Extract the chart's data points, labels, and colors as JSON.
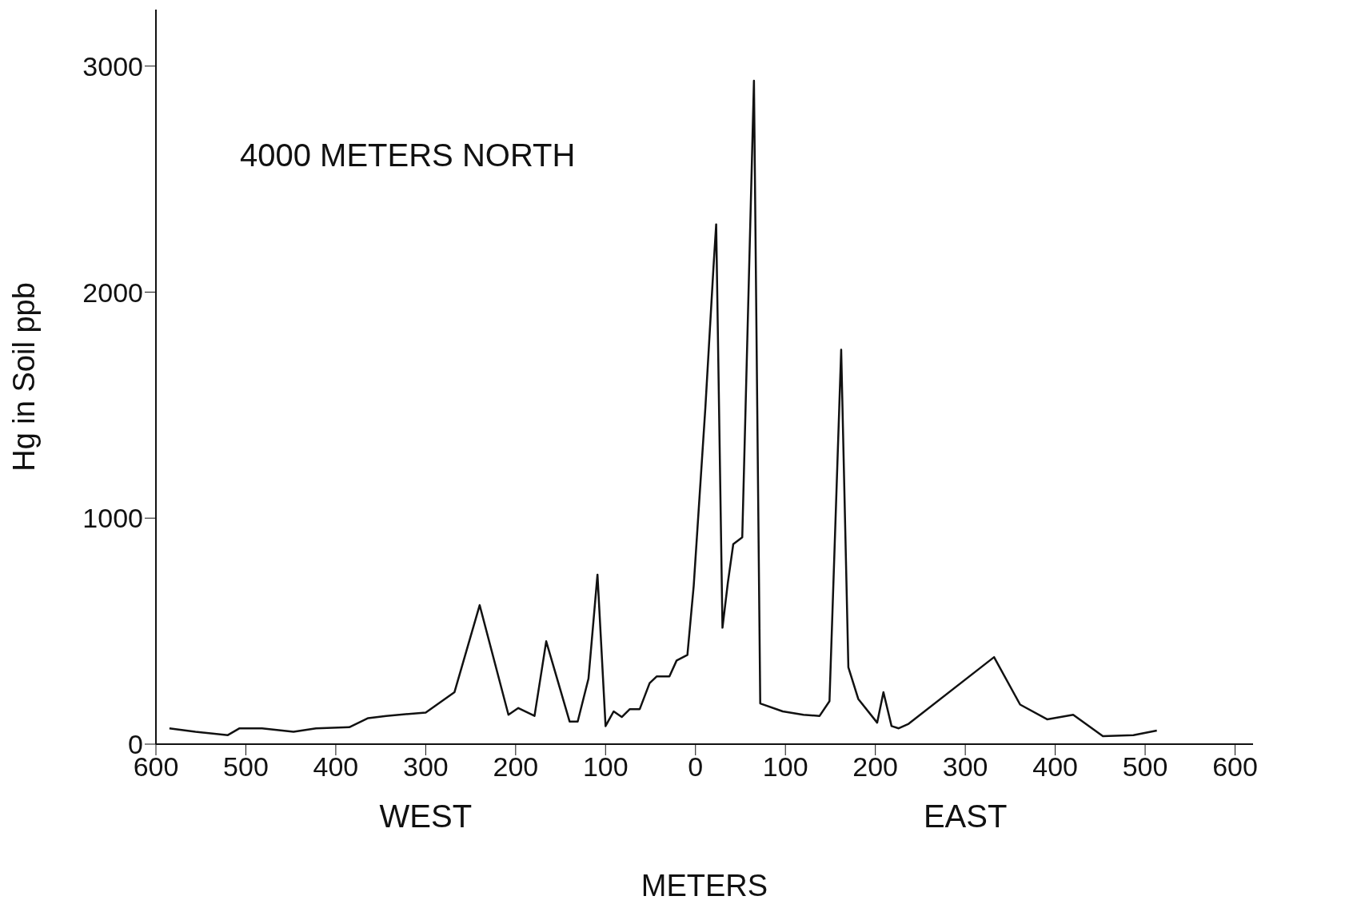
{
  "chart_data": {
    "type": "line",
    "xlabel": "METERS",
    "ylabel": "Hg in Soil ppb",
    "annotations": [
      "4000 METERS NORTH",
      "WEST",
      "EAST"
    ],
    "xlim": [
      -600,
      620
    ],
    "xticks": [
      {
        "value": -600,
        "label": "600"
      },
      {
        "value": -500,
        "label": "500"
      },
      {
        "value": -400,
        "label": "400"
      },
      {
        "value": -300,
        "label": "300"
      },
      {
        "value": -200,
        "label": "200"
      },
      {
        "value": -100,
        "label": "100"
      },
      0,
      100,
      200,
      300,
      400,
      500,
      600
    ],
    "ylim": [
      0,
      3250
    ],
    "yticks": [
      0,
      1000,
      2000,
      3000
    ],
    "grid": false,
    "legend": false,
    "marker": "none",
    "line_style": "solid",
    "series": [
      {
        "color": "#111111",
        "x": [
          -585,
          -556,
          -520,
          -507,
          -482,
          -447,
          -422,
          -385,
          -364,
          -344,
          -300,
          -268,
          -240,
          -208,
          -197,
          -179,
          -166,
          -140,
          -131,
          -119,
          -109,
          -100,
          -91,
          -82,
          -73,
          -62,
          -51,
          -43,
          -29,
          -21,
          -9,
          -2,
          11,
          20,
          23,
          30,
          36,
          42,
          52,
          65,
          72,
          97,
          120,
          138,
          149,
          162,
          170,
          181,
          202,
          209,
          218,
          226,
          237,
          332,
          361,
          391,
          420,
          453,
          487,
          513
        ],
        "values": [
          70,
          55,
          40,
          70,
          70,
          55,
          70,
          75,
          115,
          125,
          140,
          230,
          615,
          130,
          160,
          125,
          455,
          100,
          100,
          290,
          750,
          80,
          145,
          120,
          155,
          155,
          270,
          300,
          300,
          370,
          395,
          700,
          1490,
          2110,
          2300,
          515,
          715,
          885,
          915,
          2935,
          180,
          145,
          130,
          125,
          190,
          1745,
          340,
          200,
          95,
          230,
          80,
          70,
          90,
          385,
          175,
          110,
          130,
          35,
          40,
          60
        ]
      }
    ]
  }
}
